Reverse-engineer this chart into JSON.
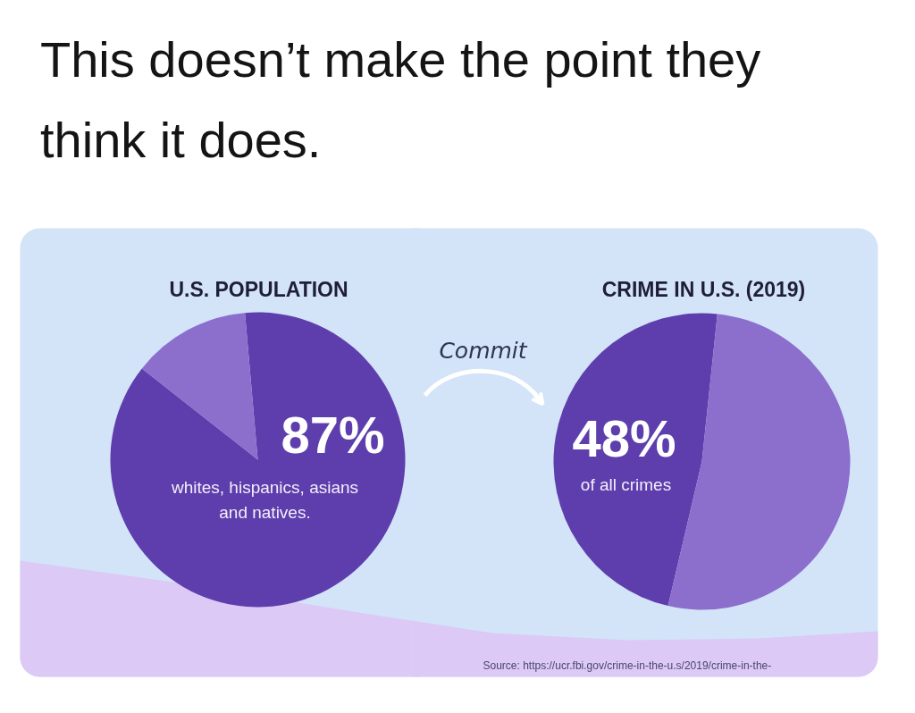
{
  "chart_data": [
    {
      "type": "other",
      "title": "This doesn’t make the point they think it does."
    },
    {
      "type": "pie",
      "title": "U.S. POPULATION",
      "categories": [
        "whites, hispanics, asians and natives.",
        null
      ],
      "values": [
        87,
        13
      ],
      "colors": [
        "#5e3eac",
        "#8c6ecd"
      ],
      "value_labels": [
        "87%",
        null
      ]
    },
    {
      "type": "pie",
      "title": "CRIME IN U.S. (2019)",
      "categories": [
        "of all crimes",
        null
      ],
      "values": [
        48,
        52
      ],
      "colors": [
        "#5e3eac",
        "#8c6ecd"
      ],
      "value_labels": [
        "48%",
        null
      ],
      "annotations": [
        "Commit",
        "Source: https://ucr.fbi.gov/crime-in-the-u.s/2019/crime-in-the-"
      ]
    }
  ]
}
